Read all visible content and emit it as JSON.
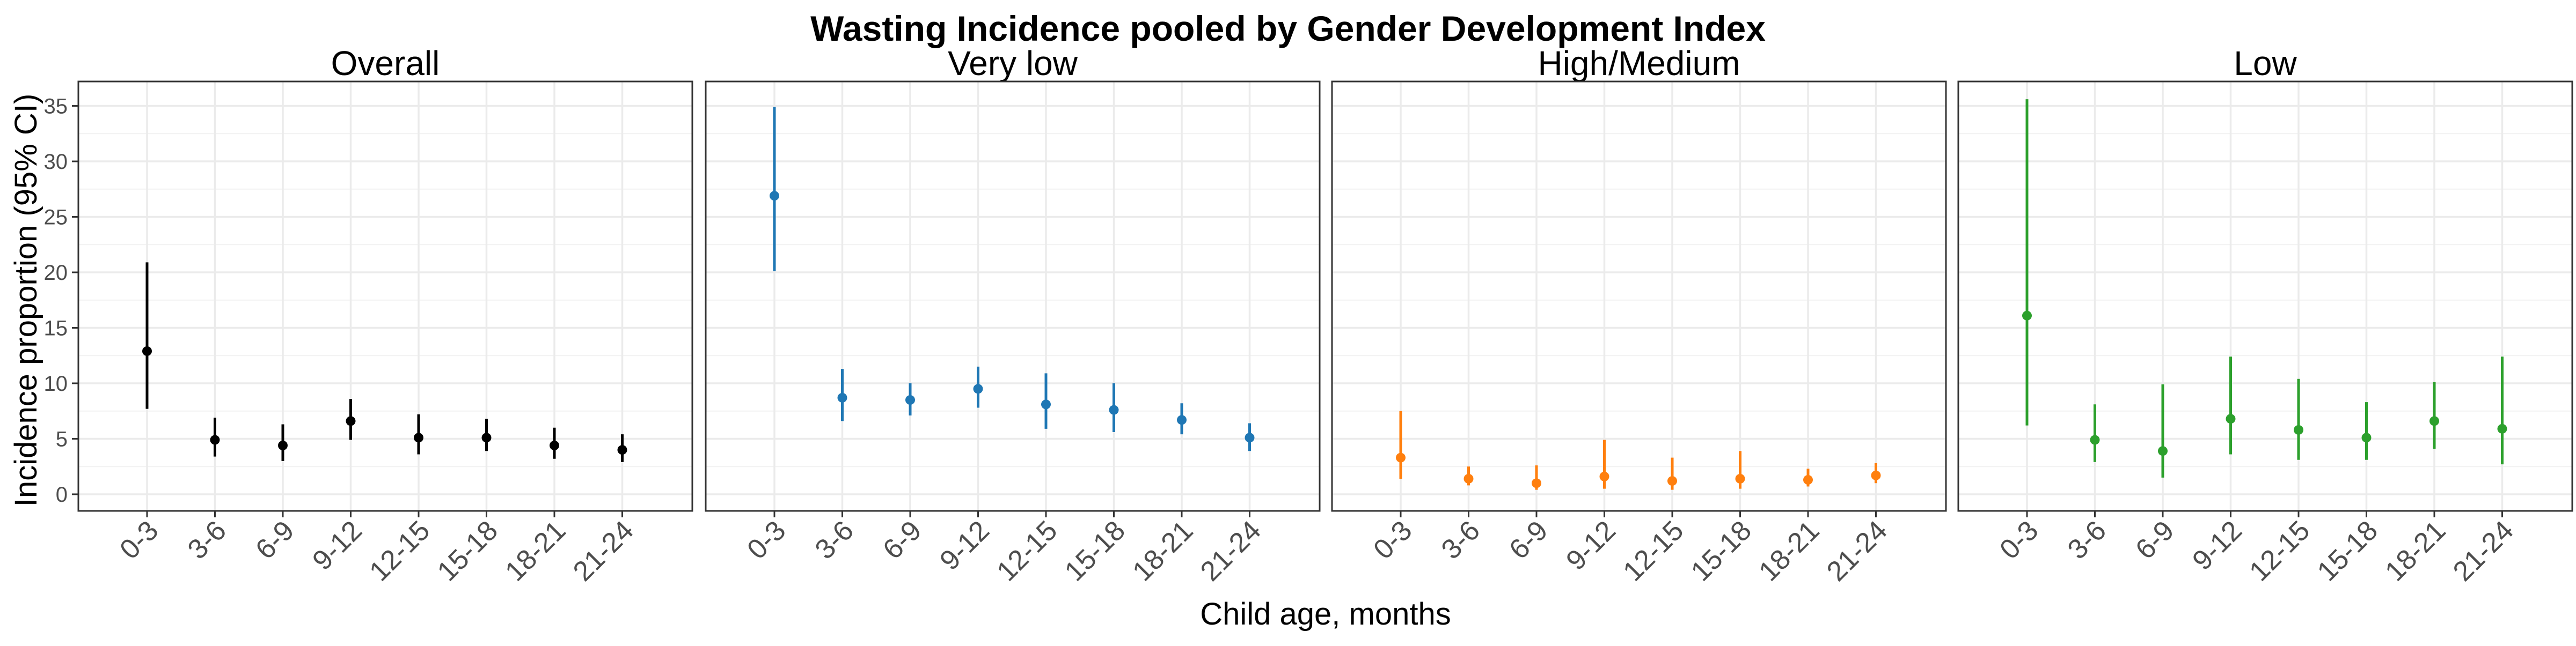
{
  "chart_data": {
    "type": "scatter",
    "variant": "point-range (point estimate with 95% CI error bars), faceted",
    "title": "Wasting Incidence pooled by Gender Development Index",
    "xlabel": "Child age, months",
    "ylabel": "Incidence proportion (95% CI)",
    "categories": [
      "0-3",
      "3-6",
      "6-9",
      "9-12",
      "12-15",
      "15-18",
      "18-21",
      "21-24"
    ],
    "ylim": [
      -1.5,
      37.2
    ],
    "yticks": [
      0,
      5,
      10,
      15,
      20,
      25,
      30,
      35
    ],
    "grid": true,
    "legend": "none",
    "panels": [
      {
        "name": "Overall",
        "color": "#000000",
        "points": [
          {
            "x": "0-3",
            "y": 12.9,
            "lo": 7.7,
            "hi": 20.9
          },
          {
            "x": "3-6",
            "y": 4.9,
            "lo": 3.4,
            "hi": 6.9
          },
          {
            "x": "6-9",
            "y": 4.4,
            "lo": 3.0,
            "hi": 6.3
          },
          {
            "x": "9-12",
            "y": 6.6,
            "lo": 4.9,
            "hi": 8.6
          },
          {
            "x": "12-15",
            "y": 5.1,
            "lo": 3.6,
            "hi": 7.2
          },
          {
            "x": "15-18",
            "y": 5.1,
            "lo": 3.9,
            "hi": 6.8
          },
          {
            "x": "18-21",
            "y": 4.4,
            "lo": 3.2,
            "hi": 6.0
          },
          {
            "x": "21-24",
            "y": 4.0,
            "lo": 2.9,
            "hi": 5.4
          }
        ]
      },
      {
        "name": "Very low",
        "color": "#1f77b4",
        "points": [
          {
            "x": "0-3",
            "y": 26.9,
            "lo": 20.1,
            "hi": 34.9
          },
          {
            "x": "3-6",
            "y": 8.7,
            "lo": 6.6,
            "hi": 11.3
          },
          {
            "x": "6-9",
            "y": 8.5,
            "lo": 7.1,
            "hi": 10.0
          },
          {
            "x": "9-12",
            "y": 9.5,
            "lo": 7.8,
            "hi": 11.5
          },
          {
            "x": "12-15",
            "y": 8.1,
            "lo": 5.9,
            "hi": 10.9
          },
          {
            "x": "15-18",
            "y": 7.6,
            "lo": 5.6,
            "hi": 10.0
          },
          {
            "x": "18-21",
            "y": 6.7,
            "lo": 5.4,
            "hi": 8.2
          },
          {
            "x": "21-24",
            "y": 5.1,
            "lo": 3.9,
            "hi": 6.4
          }
        ]
      },
      {
        "name": "High/Medium",
        "color": "#ff7f0e",
        "points": [
          {
            "x": "0-3",
            "y": 3.3,
            "lo": 1.4,
            "hi": 7.5
          },
          {
            "x": "3-6",
            "y": 1.4,
            "lo": 0.8,
            "hi": 2.5
          },
          {
            "x": "6-9",
            "y": 1.0,
            "lo": 0.4,
            "hi": 2.6
          },
          {
            "x": "9-12",
            "y": 1.6,
            "lo": 0.5,
            "hi": 4.9
          },
          {
            "x": "12-15",
            "y": 1.2,
            "lo": 0.4,
            "hi": 3.3
          },
          {
            "x": "15-18",
            "y": 1.4,
            "lo": 0.5,
            "hi": 3.9
          },
          {
            "x": "18-21",
            "y": 1.3,
            "lo": 0.7,
            "hi": 2.3
          },
          {
            "x": "21-24",
            "y": 1.7,
            "lo": 1.0,
            "hi": 2.8
          }
        ]
      },
      {
        "name": "Low",
        "color": "#2ca02c",
        "points": [
          {
            "x": "0-3",
            "y": 16.1,
            "lo": 6.2,
            "hi": 35.6
          },
          {
            "x": "3-6",
            "y": 4.9,
            "lo": 2.9,
            "hi": 8.1
          },
          {
            "x": "6-9",
            "y": 3.9,
            "lo": 1.5,
            "hi": 9.9
          },
          {
            "x": "9-12",
            "y": 6.8,
            "lo": 3.6,
            "hi": 12.4
          },
          {
            "x": "12-15",
            "y": 5.8,
            "lo": 3.1,
            "hi": 10.4
          },
          {
            "x": "15-18",
            "y": 5.1,
            "lo": 3.1,
            "hi": 8.3
          },
          {
            "x": "18-21",
            "y": 6.6,
            "lo": 4.1,
            "hi": 10.1
          },
          {
            "x": "21-24",
            "y": 5.9,
            "lo": 2.7,
            "hi": 12.4
          }
        ]
      }
    ]
  }
}
